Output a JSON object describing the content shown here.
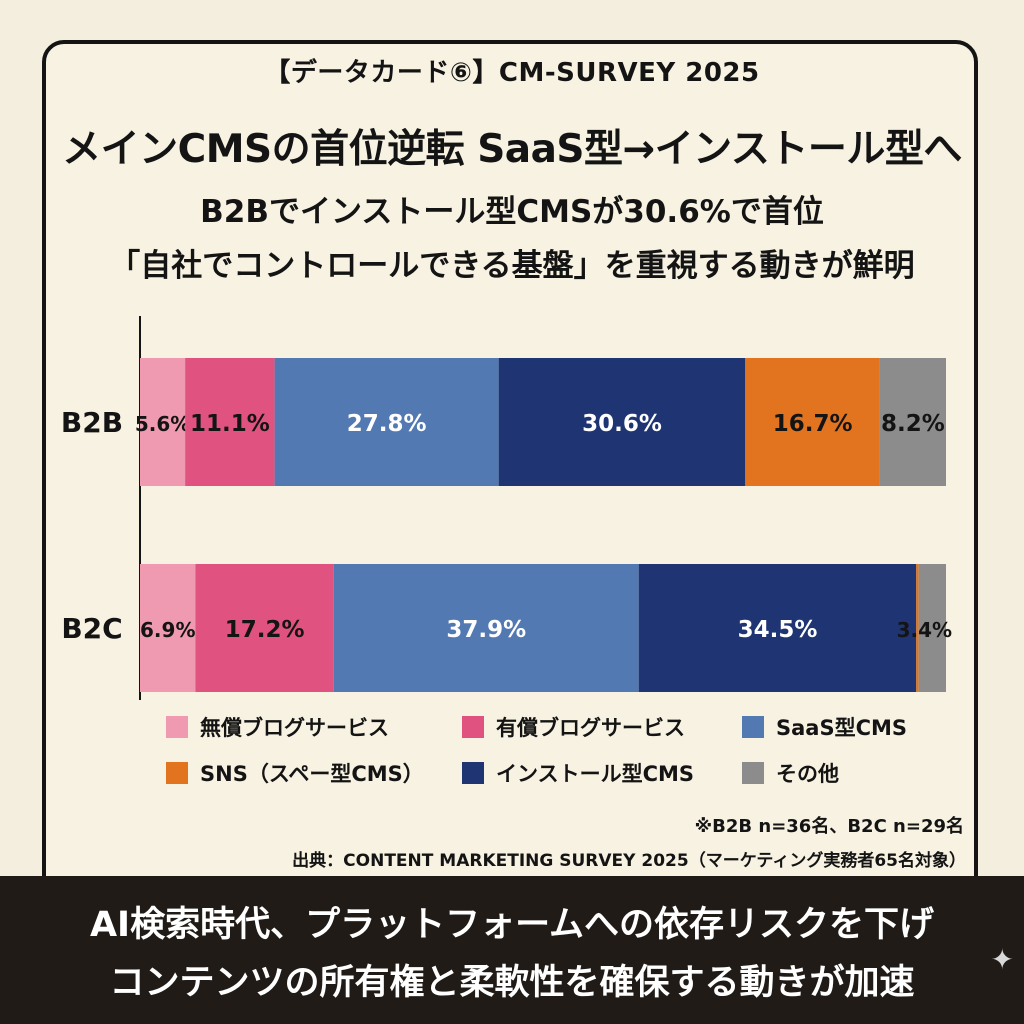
{
  "header": {
    "tag": "【データカード⑥】CM-SURVEY 2025",
    "title": "メインCMSの首位逆転 SaaS型→インストール型へ",
    "subtitle_1": "B2Bでインストール型CMSが30.6%で首位",
    "subtitle_2": "「自社でコントロールできる基盤」を重視する動きが鮮明"
  },
  "chart_data": {
    "type": "bar",
    "orientation": "horizontal",
    "stacked": true,
    "normalized": true,
    "categories": [
      "B2B",
      "B2C"
    ],
    "series": [
      {
        "name": "無償ブログサービス",
        "values": [
          5.6,
          6.9
        ],
        "labels": [
          "5.6%",
          "6.9%"
        ],
        "color": "#ef9ab1"
      },
      {
        "name": "有償ブログサービス",
        "values": [
          11.1,
          17.2
        ],
        "labels": [
          "11.1%",
          "17.2%"
        ],
        "color": "#e0527f"
      },
      {
        "name": "SaaS型CMS",
        "values": [
          27.8,
          37.9
        ],
        "labels": [
          "27.8%",
          "37.9%"
        ],
        "color": "#5379b3"
      },
      {
        "name": "インストール型CMS",
        "values": [
          30.6,
          34.5
        ],
        "labels": [
          "30.6%",
          "34.5%"
        ],
        "color": "#1f3472"
      },
      {
        "name": "SNS（スペー型CMS）",
        "values": [
          16.7,
          0.3
        ],
        "labels": [
          "16.7%",
          ""
        ],
        "color": "#e2741f"
      },
      {
        "name": "その他",
        "values": [
          8.2,
          3.4
        ],
        "labels": [
          "8.2%",
          "3.4%"
        ],
        "color": "#8c8c8c"
      }
    ],
    "legend_position": "bottom",
    "grid": false
  },
  "legend": [
    {
      "label": "無償ブログサービス",
      "color": "#ef9ab1"
    },
    {
      "label": "有償ブログサービス",
      "color": "#e0527f"
    },
    {
      "label": "SaaS型CMS",
      "color": "#5379b3"
    },
    {
      "label": "SNS（スペー型CMS）",
      "color": "#e2741f"
    },
    {
      "label": "インストール型CMS",
      "color": "#1f3472"
    },
    {
      "label": "その他",
      "color": "#8c8c8c"
    }
  ],
  "note": "※B2B n=36名、B2C n=29名",
  "source": "出典：CONTENT MARKETING SURVEY 2025（マーケティング実務者65名対象）",
  "footer": {
    "line_1": "AI検索時代、プラットフォームへの依存リスクを下げ",
    "line_2": "コンテンツの所有権と柔軟性を確保する動きが加速"
  }
}
